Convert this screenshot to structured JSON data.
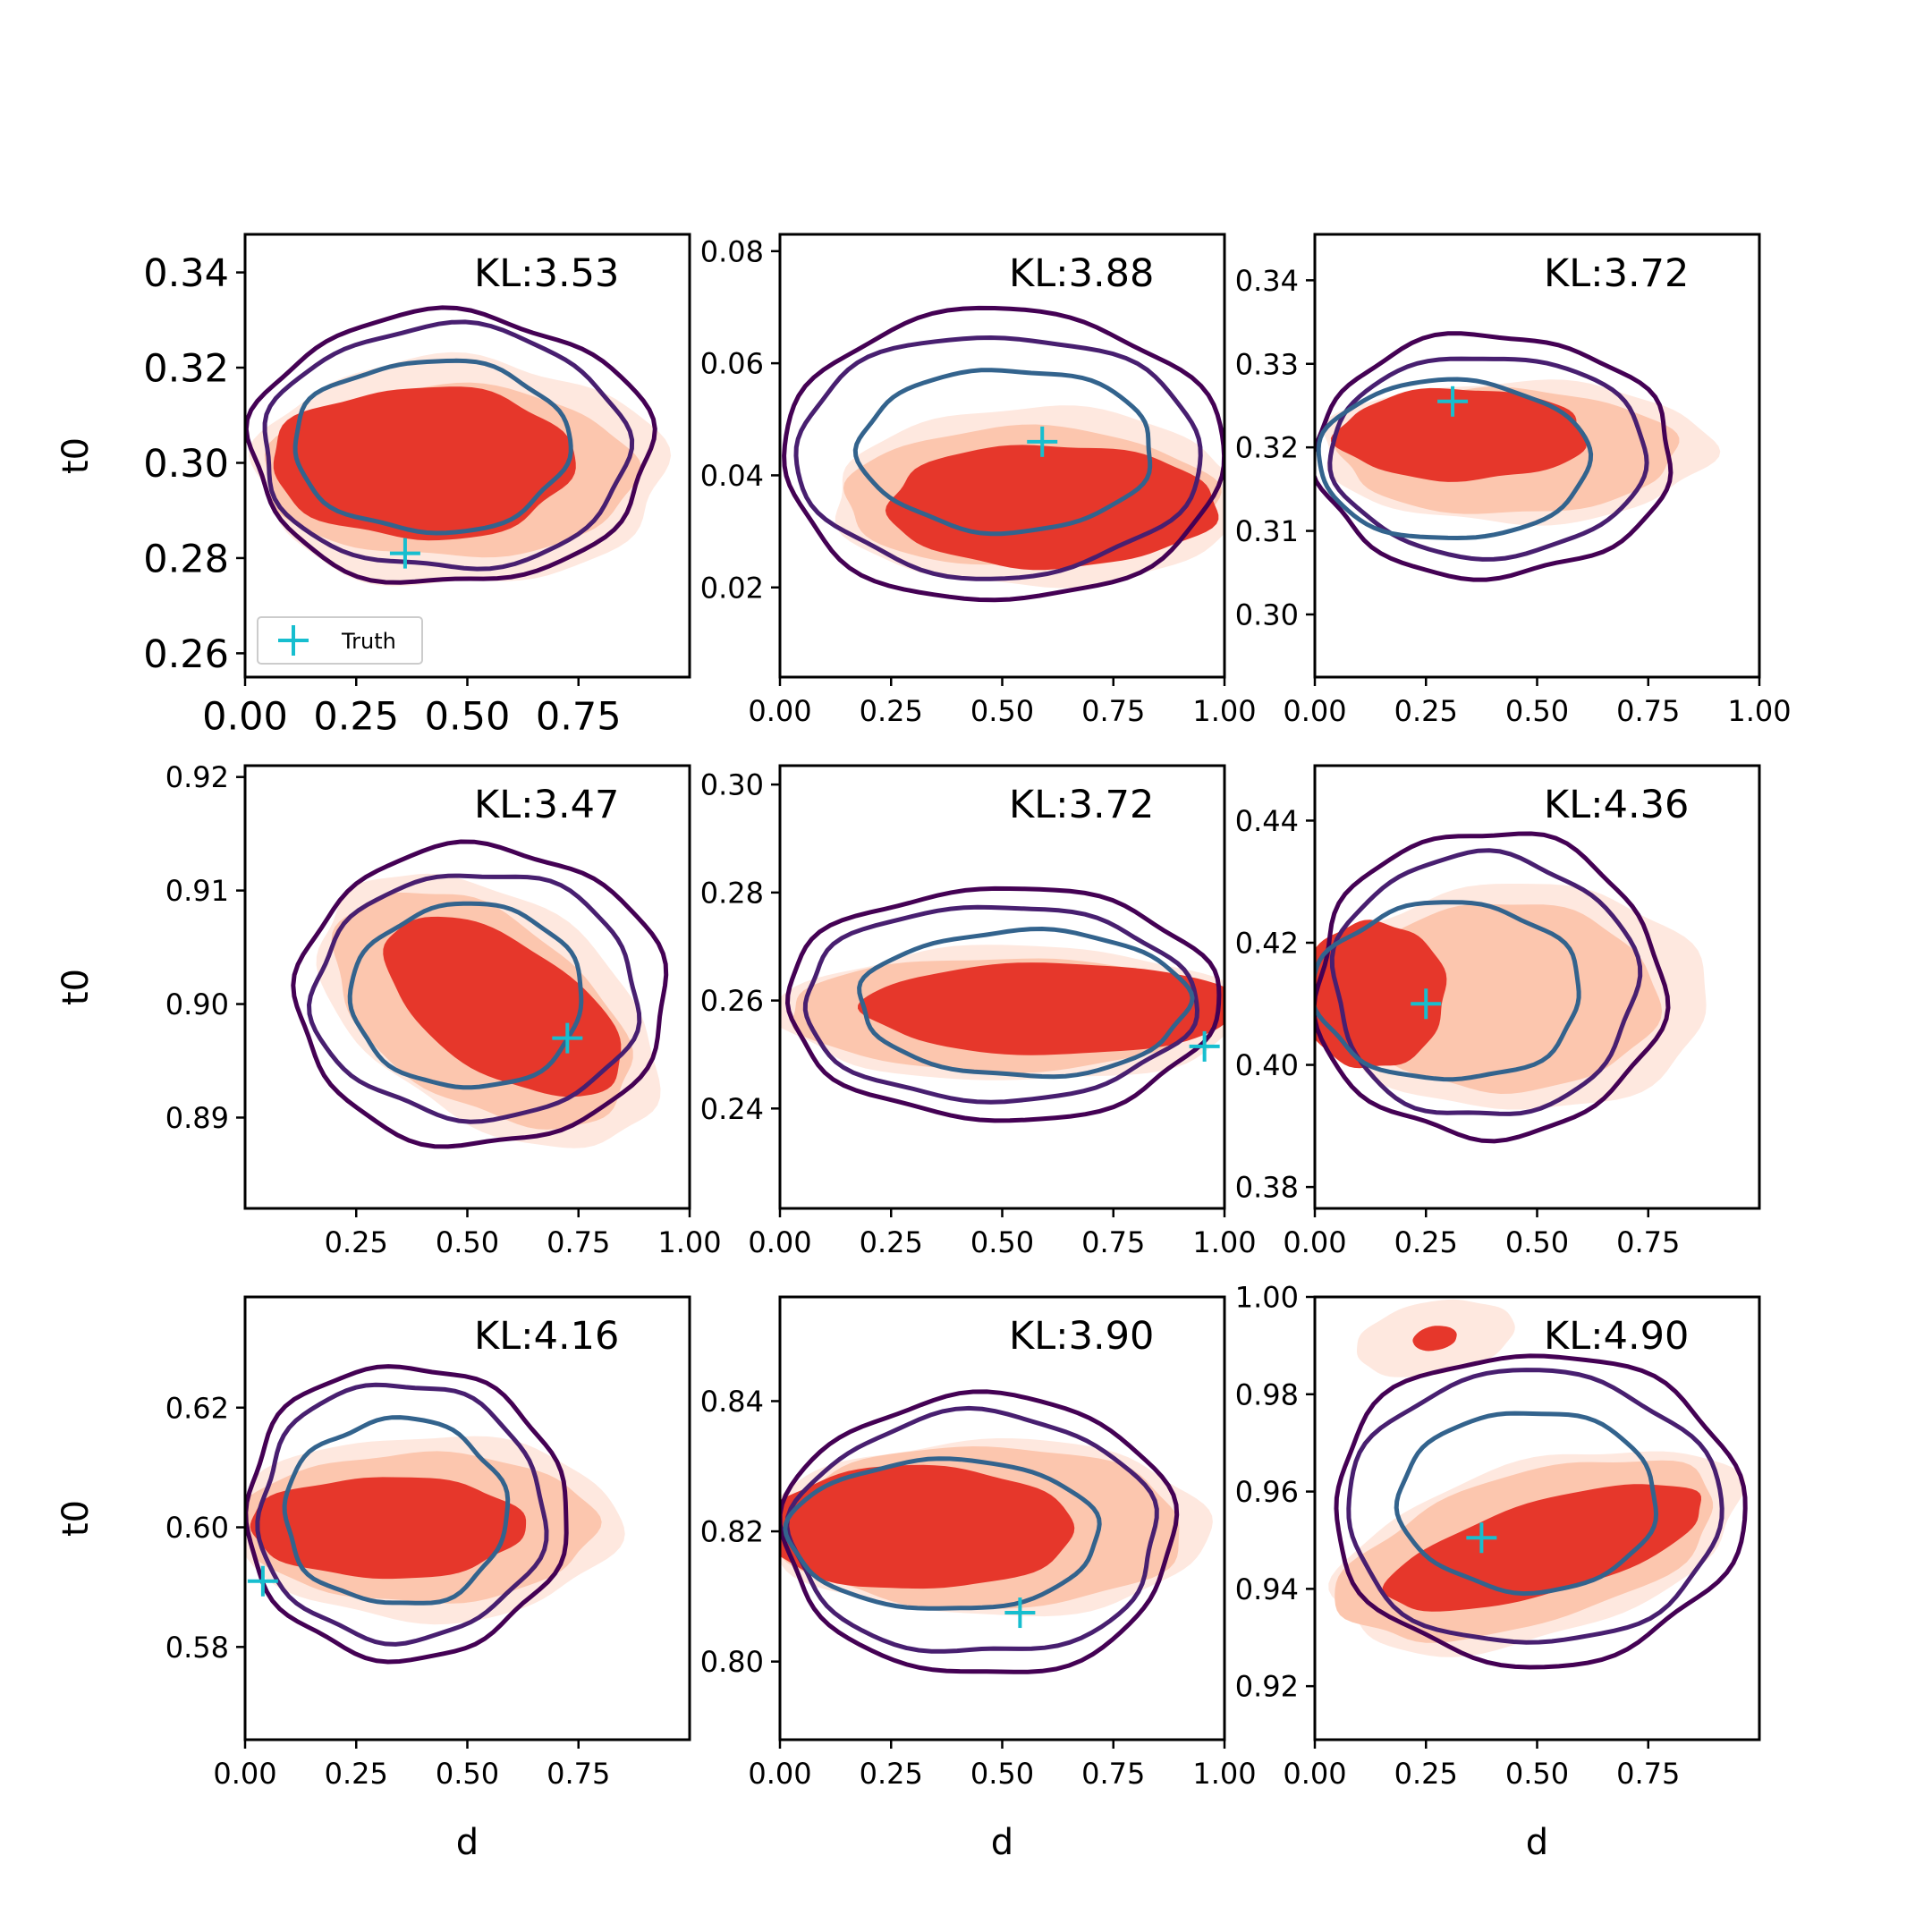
{
  "chart_data": [
    {
      "type": "scatter",
      "kl_label": "KL:3.53",
      "ylabel": "t0",
      "xlabel": "",
      "xlim": [
        0,
        1
      ],
      "ylim": [
        0.255,
        0.348
      ],
      "xticks": [
        0.0,
        0.25,
        0.5,
        0.75
      ],
      "xtick_labels": [
        "0.00",
        "0.25",
        "0.50",
        "0.75"
      ],
      "yticks": [
        0.26,
        0.28,
        0.3,
        0.32,
        0.34
      ],
      "ytick_labels": [
        "0.26",
        "0.28",
        "0.30",
        "0.32",
        "0.34"
      ],
      "truth": {
        "x": 0.36,
        "y": 0.281
      },
      "legend": {
        "label": "Truth",
        "location": "lower left"
      },
      "posterior_contours": {
        "center": [
          0.46,
          0.303
        ],
        "half_width": [
          0.45,
          0.0285
        ],
        "mid": [
          0.41,
          0.0255
        ],
        "inner": [
          0.31,
          0.018
        ],
        "inner_center": [
          0.42,
          0.3035
        ]
      },
      "reference_density": {
        "center": [
          0.48,
          0.298
        ],
        "outer": [
          0.46,
          0.024
        ],
        "mid": [
          0.42,
          0.018
        ],
        "core": [
          0.34,
          0.016
        ],
        "core_center": [
          0.4,
          0.3
        ],
        "tilt": 0
      }
    },
    {
      "type": "scatter",
      "kl_label": "KL:3.88",
      "ylabel": "",
      "xlabel": "",
      "xlim": [
        0,
        1
      ],
      "ylim": [
        0.004,
        0.083
      ],
      "xticks": [
        0.0,
        0.25,
        0.5,
        0.75,
        1.0
      ],
      "xtick_labels": [
        "0.00",
        "0.25",
        "0.50",
        "0.75",
        "1.00"
      ],
      "yticks": [
        0.02,
        0.04,
        0.06,
        0.08
      ],
      "ytick_labels": [
        "0.02",
        "0.04",
        "0.06",
        "0.08"
      ],
      "truth": {
        "x": 0.59,
        "y": 0.046
      },
      "posterior_contours": {
        "center": [
          0.5,
          0.0435
        ],
        "half_width": [
          0.495,
          0.026
        ],
        "mid": [
          0.455,
          0.0215
        ],
        "inner": [
          0.33,
          0.0145
        ],
        "inner_center": [
          0.51,
          0.0445
        ]
      },
      "reference_density": {
        "center": [
          0.58,
          0.036
        ],
        "outer": [
          0.46,
          0.016
        ],
        "mid": [
          0.42,
          0.0125
        ],
        "core": [
          0.37,
          0.011
        ],
        "core_center": [
          0.61,
          0.0345
        ],
        "tilt": 0
      }
    },
    {
      "type": "scatter",
      "kl_label": "KL:3.72",
      "ylabel": "",
      "xlabel": "",
      "xlim": [
        0,
        1
      ],
      "ylim": [
        0.2925,
        0.3455
      ],
      "xticks": [
        0.0,
        0.25,
        0.5,
        0.75,
        1.0
      ],
      "xtick_labels": [
        "0.00",
        "0.25",
        "0.50",
        "0.75",
        "1.00"
      ],
      "yticks": [
        0.3,
        0.31,
        0.32,
        0.33,
        0.34
      ],
      "ytick_labels": [
        "0.30",
        "0.31",
        "0.32",
        "0.33",
        "0.34"
      ],
      "truth": {
        "x": 0.31,
        "y": 0.3255
      },
      "posterior_contours": {
        "center": [
          0.4,
          0.319
        ],
        "half_width": [
          0.4,
          0.0145
        ],
        "mid": [
          0.355,
          0.012
        ],
        "inner": [
          0.305,
          0.0095
        ],
        "inner_center": [
          0.31,
          0.3185
        ]
      },
      "reference_density": {
        "center": [
          0.45,
          0.3195
        ],
        "outer": [
          0.44,
          0.0085
        ],
        "mid": [
          0.38,
          0.0075
        ],
        "core": [
          0.28,
          0.0055
        ],
        "core_center": [
          0.33,
          0.3215
        ],
        "tilt": 0
      }
    },
    {
      "type": "scatter",
      "kl_label": "KL:3.47",
      "ylabel": "t0",
      "xlabel": "",
      "xlim": [
        0,
        1
      ],
      "ylim": [
        0.882,
        0.921
      ],
      "xticks": [
        0.25,
        0.5,
        0.75,
        1.0
      ],
      "xtick_labels": [
        "0.25",
        "0.50",
        "0.75",
        "1.00"
      ],
      "yticks": [
        0.89,
        0.9,
        0.91,
        0.92
      ],
      "ytick_labels": [
        "0.89",
        "0.90",
        "0.91",
        "0.92"
      ],
      "truth": {
        "x": 0.725,
        "y": 0.897
      },
      "posterior_contours": {
        "center": [
          0.53,
          0.9007
        ],
        "half_width": [
          0.415,
          0.0132
        ],
        "mid": [
          0.365,
          0.0108
        ],
        "inner": [
          0.26,
          0.0081
        ],
        "inner_center": [
          0.5,
          0.9007
        ]
      },
      "reference_density": {
        "center": [
          0.55,
          0.8995
        ],
        "outer": [
          0.42,
          0.0098
        ],
        "mid": [
          0.37,
          0.0083
        ],
        "core": [
          0.3,
          0.0058
        ],
        "core_center": [
          0.58,
          0.8997
        ],
        "tilt": 32
      }
    },
    {
      "type": "scatter",
      "kl_label": "KL:3.72",
      "ylabel": "",
      "xlabel": "",
      "xlim": [
        0,
        1
      ],
      "ylim": [
        0.2215,
        0.3035
      ],
      "xticks": [
        0.0,
        0.25,
        0.5,
        0.75,
        1.0
      ],
      "xtick_labels": [
        "0.00",
        "0.25",
        "0.50",
        "0.75",
        "1.00"
      ],
      "yticks": [
        0.24,
        0.26,
        0.28,
        0.3
      ],
      "ytick_labels": [
        "0.24",
        "0.26",
        "0.28",
        "0.30"
      ],
      "truth": {
        "x": 0.955,
        "y": 0.2515
      },
      "posterior_contours": {
        "center": [
          0.5,
          0.2595
        ],
        "half_width": [
          0.485,
          0.0215
        ],
        "mid": [
          0.44,
          0.018
        ],
        "inner": [
          0.37,
          0.0135
        ],
        "inner_center": [
          0.55,
          0.2595
        ]
      },
      "reference_density": {
        "center": [
          0.52,
          0.2575
        ],
        "outer": [
          0.52,
          0.0125
        ],
        "mid": [
          0.48,
          0.0105
        ],
        "core": [
          0.42,
          0.0085
        ],
        "core_center": [
          0.61,
          0.2585
        ],
        "tilt": 0
      }
    },
    {
      "type": "scatter",
      "kl_label": "KL:4.36",
      "ylabel": "",
      "xlabel": "",
      "xlim": [
        0,
        1
      ],
      "ylim": [
        0.3765,
        0.449
      ],
      "xticks": [
        0.0,
        0.25,
        0.5,
        0.75
      ],
      "xtick_labels": [
        "0.00",
        "0.25",
        "0.50",
        "0.75"
      ],
      "yticks": [
        0.38,
        0.4,
        0.42,
        0.44
      ],
      "ytick_labels": [
        "0.38",
        "0.40",
        "0.42",
        "0.44"
      ],
      "truth": {
        "x": 0.25,
        "y": 0.41
      },
      "posterior_contours": {
        "center": [
          0.39,
          0.413
        ],
        "half_width": [
          0.39,
          0.025
        ],
        "mid": [
          0.34,
          0.0215
        ],
        "inner": [
          0.3,
          0.0145
        ],
        "inner_center": [
          0.3,
          0.412
        ]
      },
      "reference_density": {
        "center": [
          0.45,
          0.411
        ],
        "outer": [
          0.44,
          0.0185
        ],
        "mid": [
          0.34,
          0.0155
        ],
        "core": [
          0.165,
          0.012
        ],
        "core_center": [
          0.13,
          0.4115
        ],
        "tilt": 0
      }
    },
    {
      "type": "scatter",
      "kl_label": "KL:4.16",
      "ylabel": "t0",
      "xlabel": "d",
      "xlim": [
        0,
        1
      ],
      "ylim": [
        0.5645,
        0.6385
      ],
      "xticks": [
        0.0,
        0.25,
        0.5,
        0.75
      ],
      "xtick_labels": [
        "0.00",
        "0.25",
        "0.50",
        "0.75"
      ],
      "yticks": [
        0.58,
        0.6,
        0.62
      ],
      "ytick_labels": [
        "0.58",
        "0.60",
        "0.62"
      ],
      "truth": {
        "x": 0.04,
        "y": 0.591
      },
      "posterior_contours": {
        "center": [
          0.36,
          0.6025
        ],
        "half_width": [
          0.36,
          0.0245
        ],
        "mid": [
          0.32,
          0.0215
        ],
        "inner": [
          0.25,
          0.0155
        ],
        "inner_center": [
          0.34,
          0.6025
        ]
      },
      "reference_density": {
        "center": [
          0.41,
          0.6
        ],
        "outer": [
          0.43,
          0.0155
        ],
        "mid": [
          0.4,
          0.0125
        ],
        "core": [
          0.31,
          0.0085
        ],
        "core_center": [
          0.32,
          0.6
        ],
        "tilt": 0
      }
    },
    {
      "type": "scatter",
      "kl_label": "KL:3.90",
      "ylabel": "",
      "xlabel": "d",
      "xlim": [
        0,
        1
      ],
      "ylim": [
        0.788,
        0.856
      ],
      "xticks": [
        0.0,
        0.25,
        0.5,
        0.75,
        1.0
      ],
      "xtick_labels": [
        "0.00",
        "0.25",
        "0.50",
        "0.75",
        "1.00"
      ],
      "yticks": [
        0.8,
        0.82,
        0.84
      ],
      "ytick_labels": [
        "0.80",
        "0.82",
        "0.84"
      ],
      "truth": {
        "x": 0.54,
        "y": 0.8075
      },
      "posterior_contours": {
        "center": [
          0.45,
          0.8195
        ],
        "half_width": [
          0.44,
          0.0215
        ],
        "mid": [
          0.41,
          0.0185
        ],
        "inner": [
          0.35,
          0.0115
        ],
        "inner_center": [
          0.37,
          0.8195
        ]
      },
      "reference_density": {
        "center": [
          0.47,
          0.8205
        ],
        "outer": [
          0.5,
          0.0135
        ],
        "mid": [
          0.46,
          0.0125
        ],
        "core": [
          0.35,
          0.0095
        ],
        "core_center": [
          0.31,
          0.8205
        ],
        "tilt": 0
      }
    },
    {
      "type": "scatter",
      "kl_label": "KL:4.90",
      "ylabel": "",
      "xlabel": "d",
      "xlim": [
        0,
        1
      ],
      "ylim": [
        0.909,
        1.0
      ],
      "xticks": [
        0.0,
        0.25,
        0.5,
        0.75
      ],
      "xtick_labels": [
        "0.00",
        "0.25",
        "0.50",
        "0.75"
      ],
      "yticks": [
        0.92,
        0.94,
        0.96,
        0.98,
        1.0
      ],
      "ytick_labels": [
        "0.92",
        "0.94",
        "0.96",
        "0.98",
        "1.00"
      ],
      "truth": {
        "x": 0.375,
        "y": 0.9505
      },
      "posterior_contours": {
        "center": [
          0.5,
          0.9565
        ],
        "half_width": [
          0.46,
          0.032
        ],
        "mid": [
          0.42,
          0.028
        ],
        "inner": [
          0.29,
          0.0185
        ],
        "inner_center": [
          0.48,
          0.958
        ]
      },
      "reference_density": {
        "center": [
          0.5,
          0.948
        ],
        "outer": [
          0.47,
          0.018
        ],
        "mid": [
          0.44,
          0.0155
        ],
        "core": [
          0.37,
          0.0095
        ],
        "core_center": [
          0.52,
          0.9485
        ],
        "tilt": -16,
        "secondary_mode": {
          "center": [
            0.27,
            0.9915
          ],
          "outer": [
            0.18,
            0.0075
          ],
          "core": [
            0.05,
            0.0025
          ]
        }
      }
    }
  ],
  "colors": {
    "posterior_outer_contour": "#440154",
    "posterior_mid_contour": "#481f70",
    "posterior_inner_contour": "#33638d",
    "density_faint": "#fee8df",
    "density_light": "#fcc6ae",
    "density_core": "#e6372b",
    "truth_marker": "#17becf",
    "axes": "#000000",
    "background": "#ffffff"
  }
}
